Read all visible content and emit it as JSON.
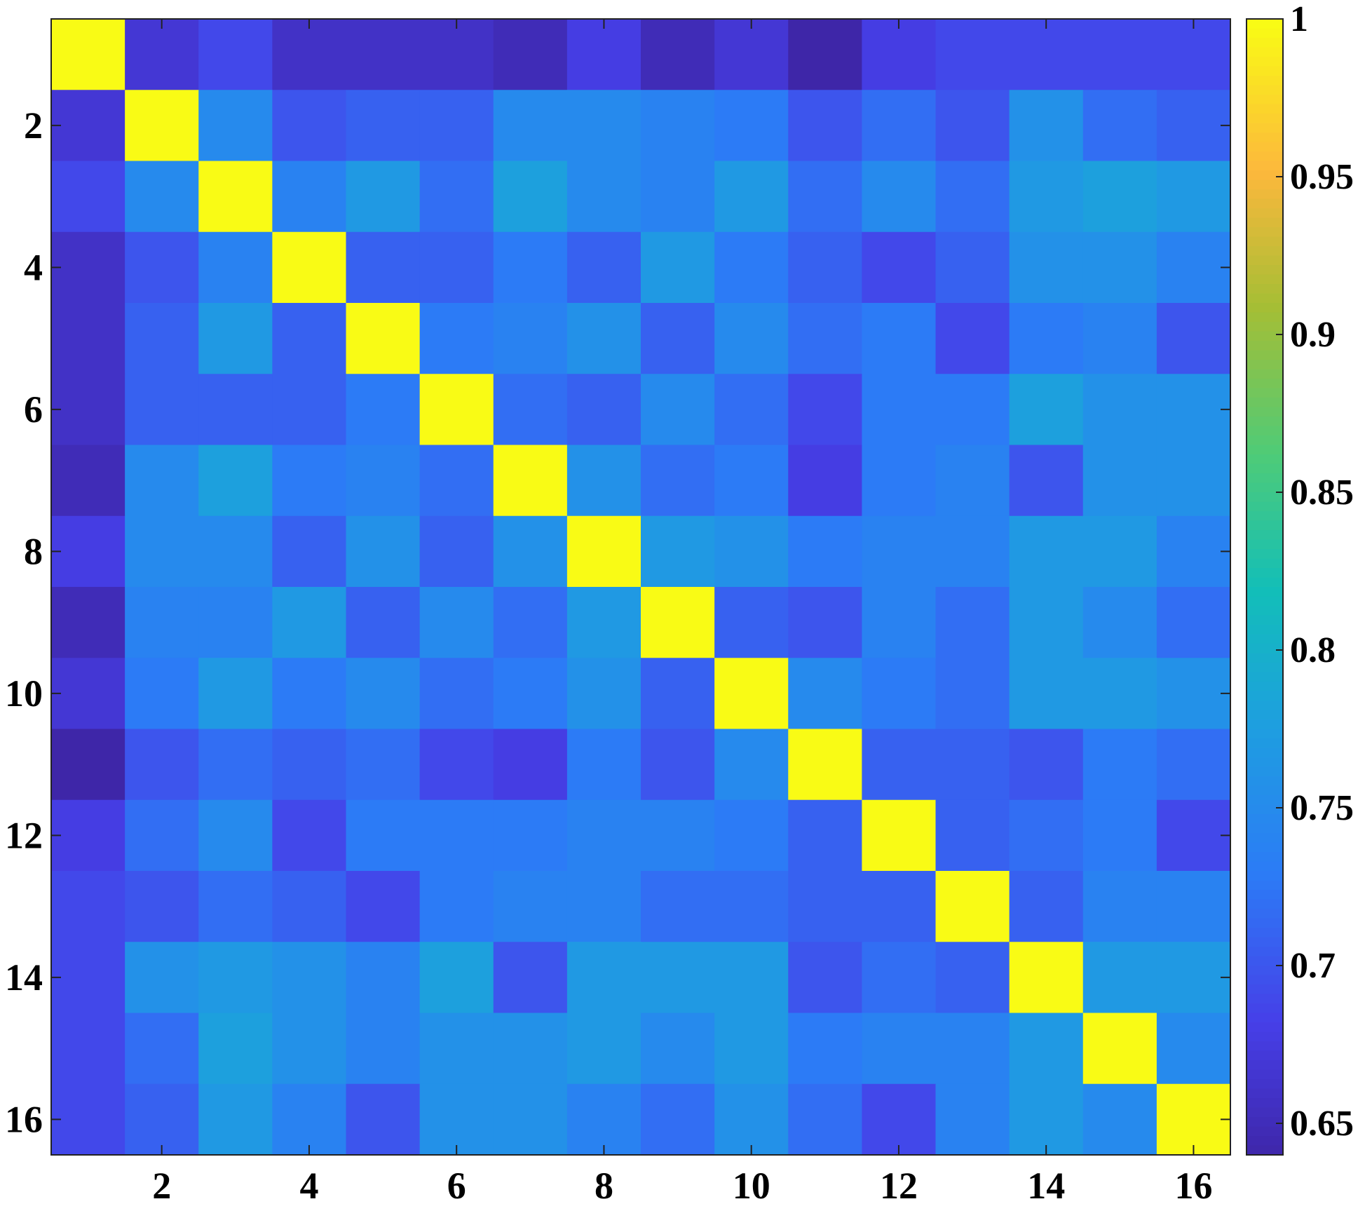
{
  "chart_data": {
    "type": "heatmap",
    "title": "",
    "xlabel": "",
    "ylabel": "",
    "x_ticks": [
      2,
      4,
      6,
      8,
      10,
      12,
      14,
      16
    ],
    "y_ticks": [
      2,
      4,
      6,
      8,
      10,
      12,
      14,
      16
    ],
    "n": 16,
    "colormap": "parula",
    "clim": [
      0.64,
      1.0
    ],
    "colorbar": {
      "placement": "right",
      "ticks": [
        1,
        0.95,
        0.9,
        0.85,
        0.8,
        0.75,
        0.7,
        0.65
      ],
      "tick_labels": [
        "1",
        "0.95",
        "0.9",
        "0.85",
        "0.8",
        "0.75",
        "0.7",
        "0.65"
      ]
    },
    "matrix": [
      [
        1.0,
        0.67,
        0.69,
        0.66,
        0.66,
        0.66,
        0.65,
        0.68,
        0.65,
        0.67,
        0.64,
        0.68,
        0.69,
        0.69,
        0.69,
        0.69
      ],
      [
        0.67,
        1.0,
        0.75,
        0.7,
        0.71,
        0.71,
        0.75,
        0.75,
        0.74,
        0.73,
        0.7,
        0.72,
        0.7,
        0.76,
        0.72,
        0.71
      ],
      [
        0.69,
        0.75,
        1.0,
        0.74,
        0.77,
        0.72,
        0.78,
        0.75,
        0.74,
        0.77,
        0.72,
        0.75,
        0.72,
        0.77,
        0.78,
        0.77
      ],
      [
        0.66,
        0.7,
        0.74,
        1.0,
        0.71,
        0.71,
        0.73,
        0.71,
        0.77,
        0.73,
        0.71,
        0.69,
        0.71,
        0.76,
        0.76,
        0.74
      ],
      [
        0.66,
        0.71,
        0.77,
        0.71,
        1.0,
        0.73,
        0.74,
        0.76,
        0.71,
        0.75,
        0.72,
        0.73,
        0.69,
        0.73,
        0.74,
        0.7
      ],
      [
        0.66,
        0.71,
        0.71,
        0.71,
        0.73,
        1.0,
        0.72,
        0.71,
        0.75,
        0.72,
        0.69,
        0.73,
        0.73,
        0.78,
        0.76,
        0.76
      ],
      [
        0.65,
        0.75,
        0.78,
        0.73,
        0.74,
        0.72,
        1.0,
        0.76,
        0.72,
        0.73,
        0.68,
        0.73,
        0.74,
        0.7,
        0.76,
        0.76
      ],
      [
        0.68,
        0.75,
        0.75,
        0.71,
        0.76,
        0.71,
        0.76,
        1.0,
        0.77,
        0.76,
        0.73,
        0.74,
        0.74,
        0.77,
        0.77,
        0.74
      ],
      [
        0.65,
        0.74,
        0.74,
        0.77,
        0.71,
        0.75,
        0.72,
        0.77,
        1.0,
        0.71,
        0.7,
        0.74,
        0.72,
        0.77,
        0.75,
        0.72
      ],
      [
        0.67,
        0.73,
        0.77,
        0.73,
        0.75,
        0.72,
        0.73,
        0.76,
        0.71,
        1.0,
        0.75,
        0.73,
        0.72,
        0.77,
        0.77,
        0.76
      ],
      [
        0.64,
        0.7,
        0.72,
        0.71,
        0.72,
        0.69,
        0.68,
        0.73,
        0.7,
        0.75,
        1.0,
        0.71,
        0.71,
        0.7,
        0.73,
        0.72
      ],
      [
        0.68,
        0.72,
        0.75,
        0.69,
        0.73,
        0.73,
        0.73,
        0.74,
        0.74,
        0.73,
        0.71,
        1.0,
        0.71,
        0.72,
        0.73,
        0.69
      ],
      [
        0.69,
        0.7,
        0.72,
        0.71,
        0.69,
        0.73,
        0.74,
        0.74,
        0.72,
        0.72,
        0.71,
        0.71,
        1.0,
        0.71,
        0.74,
        0.74
      ],
      [
        0.69,
        0.76,
        0.77,
        0.76,
        0.74,
        0.78,
        0.7,
        0.77,
        0.77,
        0.77,
        0.7,
        0.72,
        0.71,
        1.0,
        0.77,
        0.77
      ],
      [
        0.69,
        0.72,
        0.78,
        0.76,
        0.74,
        0.76,
        0.76,
        0.77,
        0.75,
        0.77,
        0.73,
        0.74,
        0.74,
        0.77,
        1.0,
        0.75
      ],
      [
        0.69,
        0.71,
        0.77,
        0.74,
        0.7,
        0.76,
        0.76,
        0.74,
        0.72,
        0.76,
        0.72,
        0.69,
        0.74,
        0.77,
        0.75,
        1.0
      ]
    ]
  }
}
